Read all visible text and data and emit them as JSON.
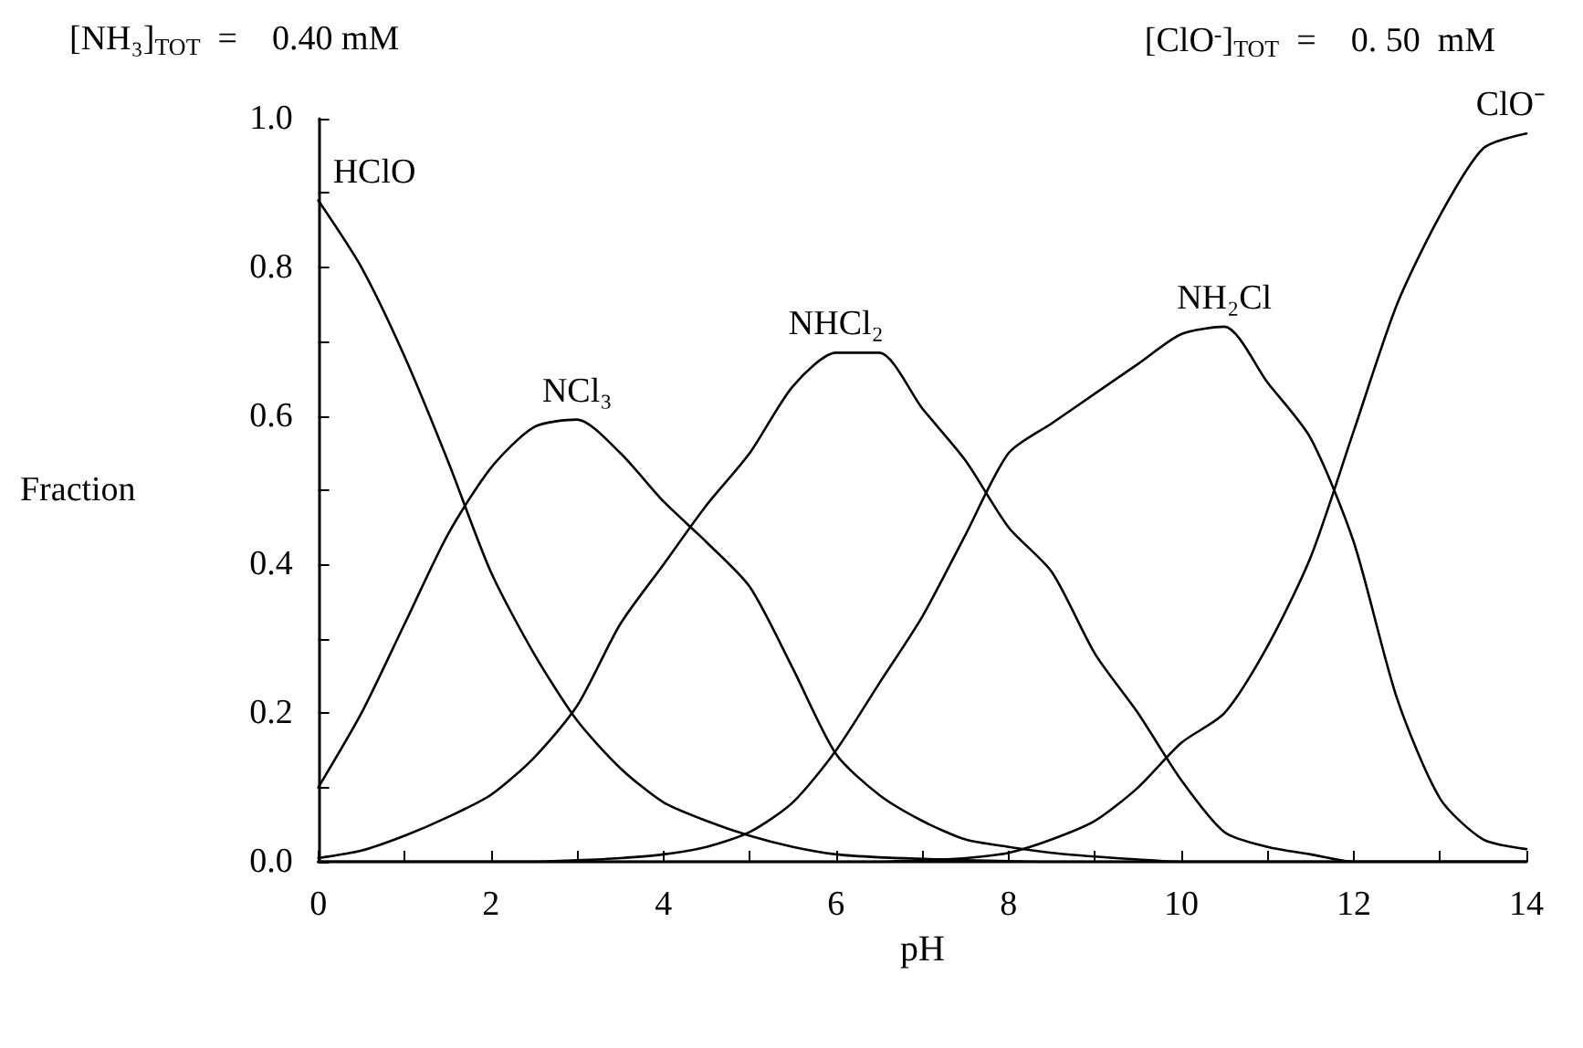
{
  "chart_data": {
    "type": "line",
    "annotations": [
      "[NH₃]$_{TOT}$  =    0.40 mM",
      "[ClO$^{-}$]$_{TOT}$  =    0. 50  mM"
    ],
    "xlabel": "pH",
    "ylabel": "Fraction",
    "x": [
      0,
      0.5,
      1,
      1.5,
      2,
      2.5,
      3,
      3.5,
      4,
      4.5,
      5,
      5.5,
      6,
      6.5,
      7,
      7.5,
      8,
      8.5,
      9,
      9.5,
      10,
      10.5,
      11,
      11.5,
      12,
      12.5,
      13,
      13.5,
      14
    ],
    "series": [
      {
        "name": "HClO",
        "color": "#000000",
        "values": [
          0.89,
          0.8,
          0.68,
          0.54,
          0.39,
          0.28,
          0.19,
          0.126,
          0.08,
          0.055,
          0.035,
          0.02,
          0.01,
          0.006,
          0.004,
          0.002,
          0.001,
          0,
          0,
          0,
          0,
          0,
          0,
          0,
          0,
          0,
          0,
          0,
          0
        ]
      },
      {
        "name": "NCl₃",
        "color": "#000000",
        "values": [
          0.1,
          0.2,
          0.32,
          0.44,
          0.53,
          0.585,
          0.595,
          0.55,
          0.485,
          0.43,
          0.37,
          0.26,
          0.145,
          0.09,
          0.055,
          0.03,
          0.02,
          0.012,
          0.007,
          0.003,
          0,
          0,
          0,
          0,
          0,
          0,
          0,
          0,
          0
        ]
      },
      {
        "name": "NHCl₂",
        "color": "#000000",
        "values": [
          0.005,
          0.015,
          0.035,
          0.06,
          0.09,
          0.14,
          0.21,
          0.32,
          0.4,
          0.48,
          0.55,
          0.64,
          0.685,
          0.685,
          0.61,
          0.54,
          0.45,
          0.39,
          0.28,
          0.2,
          0.11,
          0.04,
          0.02,
          0.01,
          0,
          0,
          0,
          0,
          0
        ]
      },
      {
        "name": "NH₂Cl",
        "color": "#000000",
        "values": [
          0,
          0,
          0,
          0,
          0,
          0,
          0.002,
          0.005,
          0.01,
          0.02,
          0.04,
          0.08,
          0.15,
          0.24,
          0.33,
          0.44,
          0.55,
          0.59,
          0.63,
          0.67,
          0.71,
          0.72,
          0.645,
          0.57,
          0.43,
          0.22,
          0.085,
          0.03,
          0.017
        ]
      },
      {
        "name": "ClO⁻",
        "color": "#000000",
        "values": [
          0,
          0,
          0,
          0,
          0,
          0,
          0,
          0,
          0,
          0,
          0,
          0,
          0,
          0,
          0.002,
          0.005,
          0.012,
          0.03,
          0.055,
          0.1,
          0.16,
          0.2,
          0.29,
          0.41,
          0.58,
          0.75,
          0.87,
          0.96,
          0.98
        ]
      }
    ],
    "xlim": [
      0,
      14
    ],
    "xticks": [
      0,
      {
        "value": 1,
        "label": null
      },
      2,
      {
        "value": 3,
        "label": null
      },
      4,
      {
        "value": 5,
        "label": null
      },
      6,
      {
        "value": 7,
        "label": null
      },
      8,
      {
        "value": 9,
        "label": null
      },
      10,
      {
        "value": 11,
        "label": null
      },
      12,
      {
        "value": 13,
        "label": null
      },
      14
    ],
    "ylim": [
      0,
      1
    ],
    "yticks": [
      "0.0",
      {
        "value": 0.1,
        "label": null
      },
      {
        "value": 0.2,
        "label": "0.2"
      },
      {
        "value": 0.3,
        "label": null
      },
      {
        "value": 0.4,
        "label": "0.4"
      },
      {
        "value": 0.5,
        "label": null
      },
      {
        "value": 0.6,
        "label": "0.6"
      },
      {
        "value": 0.7,
        "label": null
      },
      {
        "value": 0.8,
        "label": "0.8"
      },
      {
        "value": 0.9,
        "label": null
      },
      {
        "value": 1,
        "label": "1.0"
      }
    ],
    "grid": false,
    "legend": false,
    "marker": "none",
    "line_style": "solid"
  }
}
